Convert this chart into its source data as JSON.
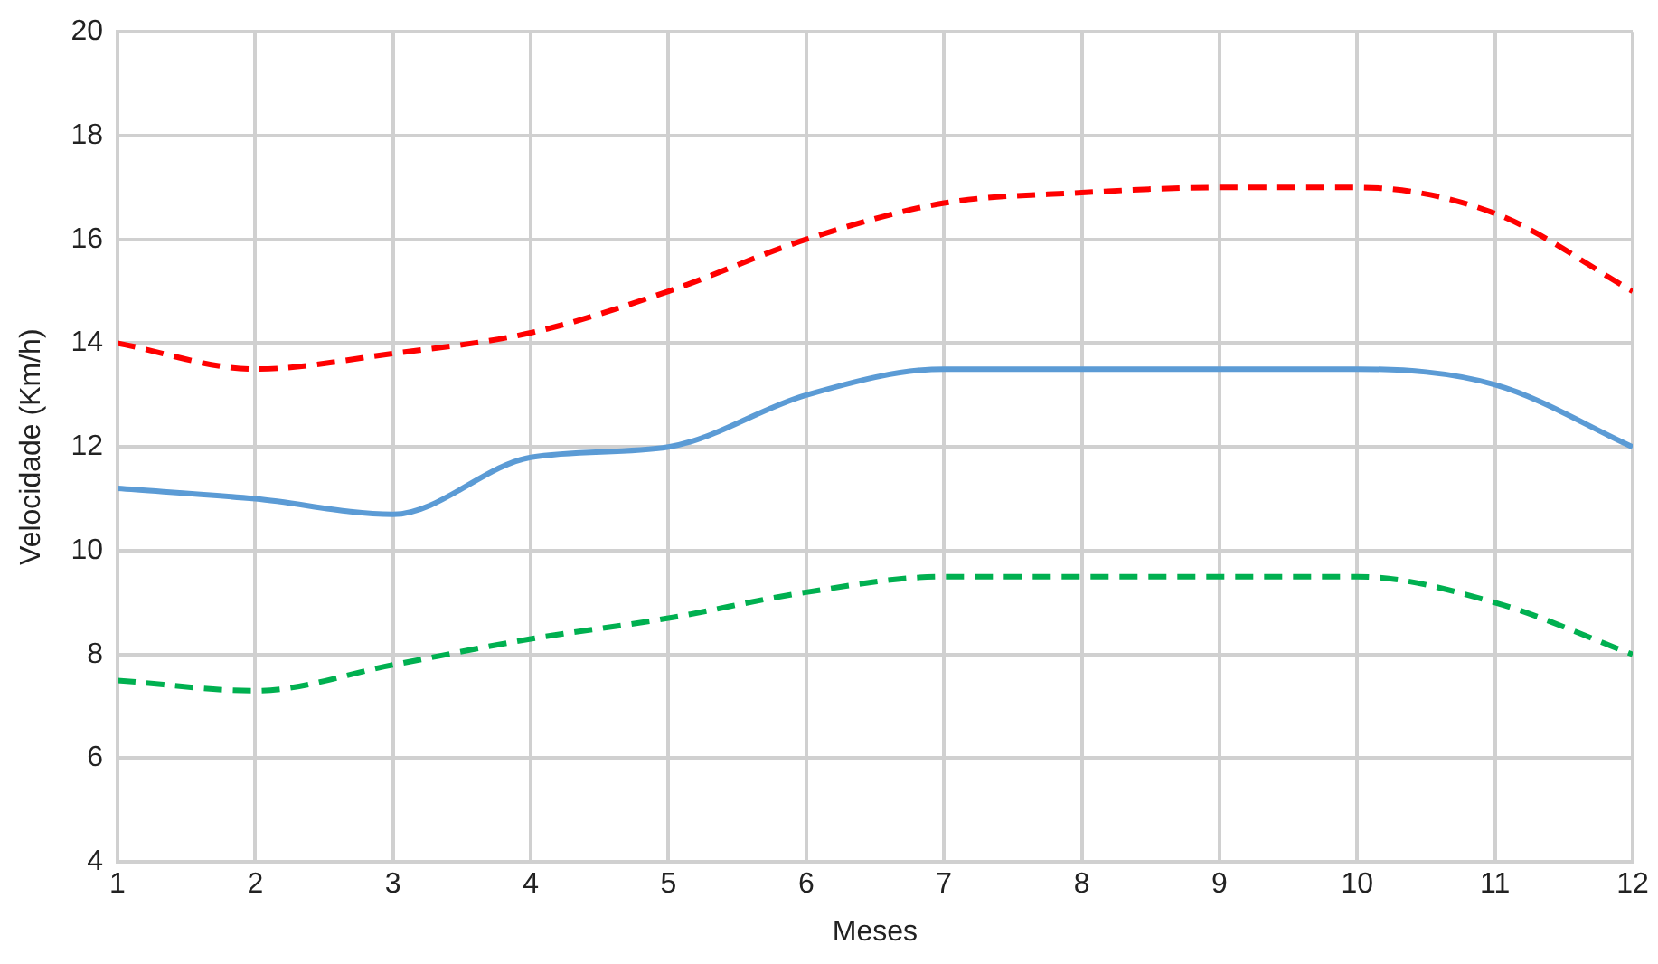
{
  "chart_data": {
    "type": "line",
    "xlabel": "Meses",
    "ylabel": "Velocidade (Km/h)",
    "x": [
      1,
      2,
      3,
      4,
      5,
      6,
      7,
      8,
      9,
      10,
      11,
      12
    ],
    "xlim": [
      1,
      12
    ],
    "xticks": [
      1,
      2,
      3,
      4,
      5,
      6,
      7,
      8,
      9,
      10,
      11,
      12
    ],
    "ylim": [
      4,
      20
    ],
    "yticks": [
      4,
      6,
      8,
      10,
      12,
      14,
      16,
      18,
      20
    ],
    "grid": true,
    "legend": false,
    "marker": "none",
    "series": [
      {
        "color": "#ff0000",
        "line_style": "dashed",
        "values": [
          14,
          13.5,
          13.8,
          14.2,
          15,
          16,
          16.7,
          16.9,
          17,
          17,
          16.5,
          15
        ]
      },
      {
        "color": "#5b9bd5",
        "line_style": "solid",
        "values": [
          11.2,
          11,
          10.7,
          11.8,
          12,
          13,
          13.5,
          13.5,
          13.5,
          13.5,
          13.2,
          12
        ]
      },
      {
        "color": "#00b050",
        "line_style": "dashed",
        "values": [
          7.5,
          7.3,
          7.8,
          8.3,
          8.7,
          9.2,
          9.5,
          9.5,
          9.5,
          9.5,
          9,
          8
        ]
      }
    ]
  }
}
